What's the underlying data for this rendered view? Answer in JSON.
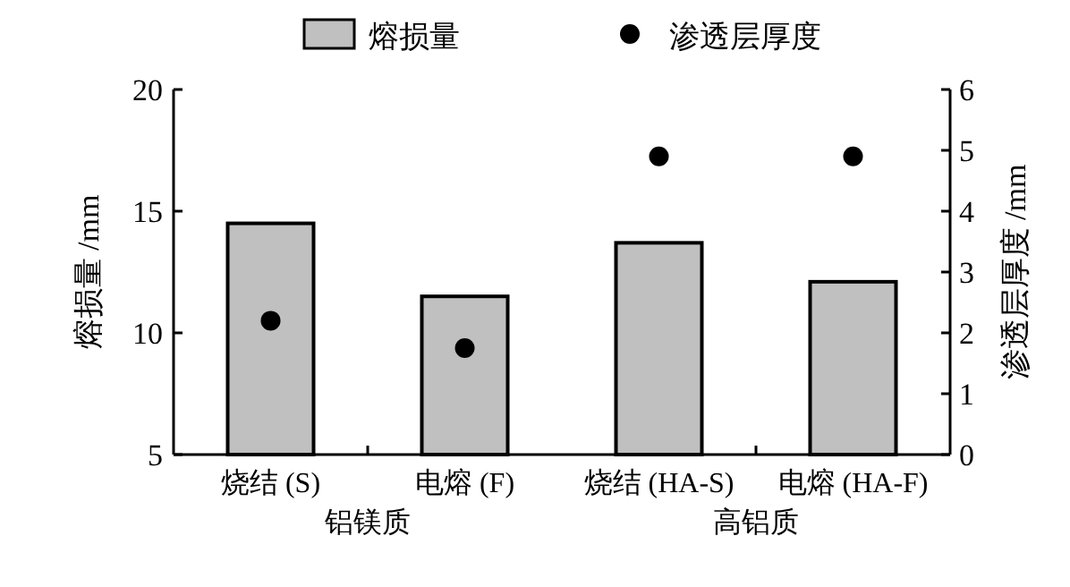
{
  "chart_data": {
    "type": "bar",
    "categories": [
      "烧结 (S)",
      "电熔 (F)",
      "烧结 (HA-S)",
      "电熔 (HA-F)"
    ],
    "series": [
      {
        "name": "熔损量",
        "color": "#c0c0c0",
        "values": [
          14.5,
          11.5,
          13.7,
          12.1
        ]
      },
      {
        "name": "渗透层厚度",
        "type": "scatter",
        "axis": "y2",
        "color": "#000000",
        "values": [
          2.2,
          1.75,
          4.9,
          4.9
        ]
      }
    ],
    "ylabel": "熔损量 /mm",
    "y2label": "渗透层厚度 /mm",
    "ylim": [
      5,
      20
    ],
    "yticks": [
      5,
      10,
      15,
      20
    ],
    "y2lim": [
      0,
      6
    ],
    "y2ticks": [
      0,
      1,
      2,
      3,
      4,
      5,
      6
    ],
    "annotations": [
      "铝镁质",
      "高铝质"
    ],
    "legend": "top",
    "grid": false,
    "marker": "circle"
  }
}
